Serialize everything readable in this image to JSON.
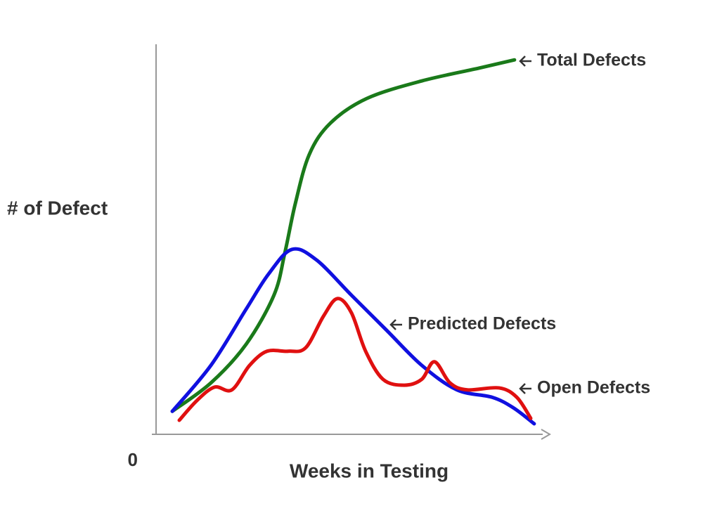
{
  "chart_data": {
    "type": "line",
    "ylabel": "# of Defect",
    "xlabel": "Weeks in Testing",
    "xlim": [
      0,
      100
    ],
    "ylim": [
      0,
      100
    ],
    "yticks": [
      0
    ],
    "series": [
      {
        "name": "Total Defects",
        "color": "#1a7a1a",
        "x": [
          4.2,
          14.2,
          23.3,
          30.5,
          33.3,
          36,
          39.6,
          45.1,
          54.5,
          68.7,
          83.6,
          92.7
        ],
        "values": [
          5.9,
          13.2,
          23.1,
          35.7,
          46.5,
          59.1,
          71.7,
          79.8,
          86.1,
          90.6,
          93.9,
          96
        ]
      },
      {
        "name": "Predicted Defects",
        "color": "#1010e0",
        "x": [
          4.2,
          14.2,
          23.3,
          29.1,
          35.1,
          41.5,
          50.5,
          59.6,
          68.7,
          77.8,
          86.9,
          92.4,
          97.8
        ],
        "values": [
          5.9,
          17.7,
          32.1,
          41.1,
          47.4,
          44.7,
          35.7,
          26.7,
          17.7,
          11.4,
          9.5,
          6.8,
          2.7
        ]
      },
      {
        "name": "Open Defects",
        "color": "#e01010",
        "x": [
          6,
          10.5,
          15.1,
          19.6,
          24.2,
          28.7,
          34.2,
          38.7,
          43.3,
          46.9,
          50.5,
          54.2,
          58.7,
          64.2,
          68.7,
          72,
          76,
          80.5,
          88.7,
          93.3,
          96.9
        ],
        "values": [
          3.6,
          8.6,
          12.1,
          11.4,
          17.7,
          21.3,
          21.3,
          22.2,
          30.3,
          34.8,
          31.2,
          21.3,
          14.1,
          12.6,
          14.1,
          18.6,
          13.2,
          11.4,
          11.9,
          9.5,
          4.1
        ]
      }
    ]
  }
}
